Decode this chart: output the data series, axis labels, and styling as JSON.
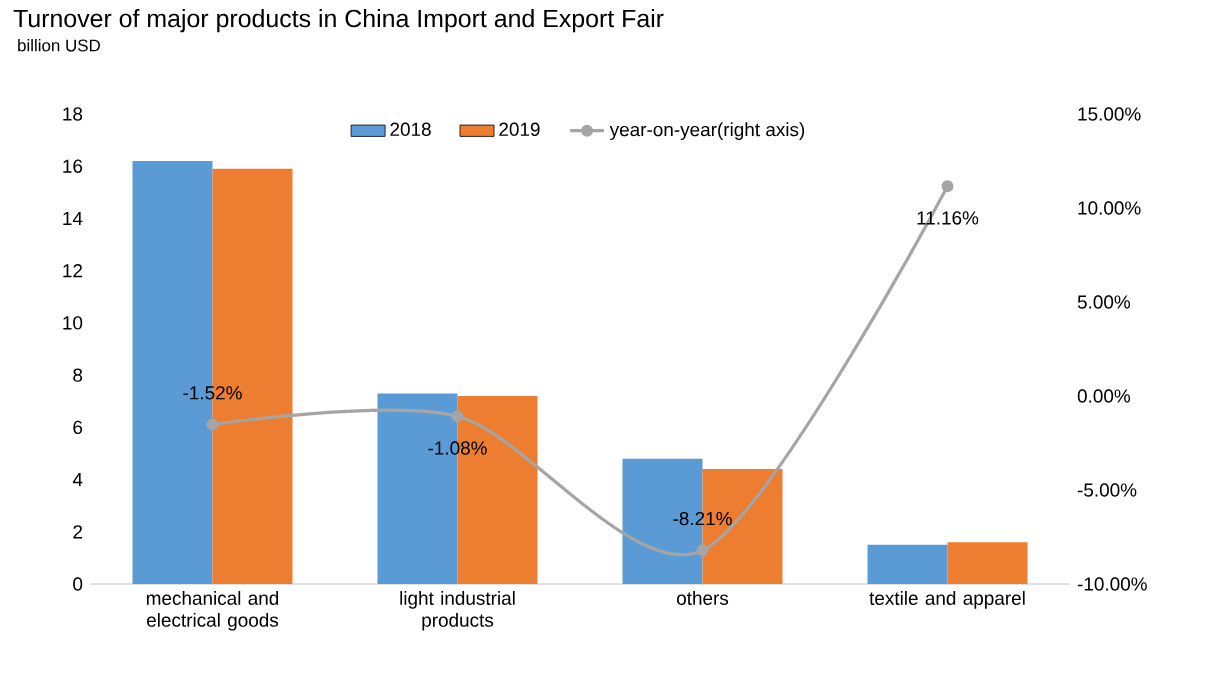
{
  "chart_data": {
    "type": "bar",
    "title": "Turnover of major products in China Import and Export Fair",
    "ylabel": "billion USD",
    "categories": [
      "mechanical and electrical goods",
      "light industrial products",
      "others",
      "textile and apparel"
    ],
    "series": [
      {
        "name": "2018",
        "color": "#5b9bd5",
        "values": [
          16.2,
          7.3,
          4.8,
          1.5
        ]
      },
      {
        "name": "2019",
        "color": "#ed7d31",
        "values": [
          15.9,
          7.2,
          4.4,
          1.6
        ]
      },
      {
        "name": "year-on-year(right axis)",
        "type": "line",
        "axis": "y2",
        "color": "#a5a5a5",
        "marker": "circle",
        "values": [
          -1.52,
          -1.08,
          -8.21,
          11.16
        ],
        "value_labels": [
          "-1.52%",
          "-1.08%",
          "-8.21%",
          "11.16%"
        ]
      }
    ],
    "ylim": [
      0,
      18
    ],
    "yticks": [
      0,
      2,
      4,
      6,
      8,
      10,
      12,
      14,
      16,
      18
    ],
    "y2lim": [
      -10,
      15
    ],
    "y2ticks": [
      {
        "value": -10,
        "label": "-10.00%"
      },
      {
        "value": -5,
        "label": "-5.00%"
      },
      {
        "value": 0,
        "label": "0.00%"
      },
      {
        "value": 5,
        "label": "5.00%"
      },
      {
        "value": 10,
        "label": "10.00%"
      },
      {
        "value": 15,
        "label": "15.00%"
      }
    ],
    "legend": "top",
    "grid": false
  }
}
